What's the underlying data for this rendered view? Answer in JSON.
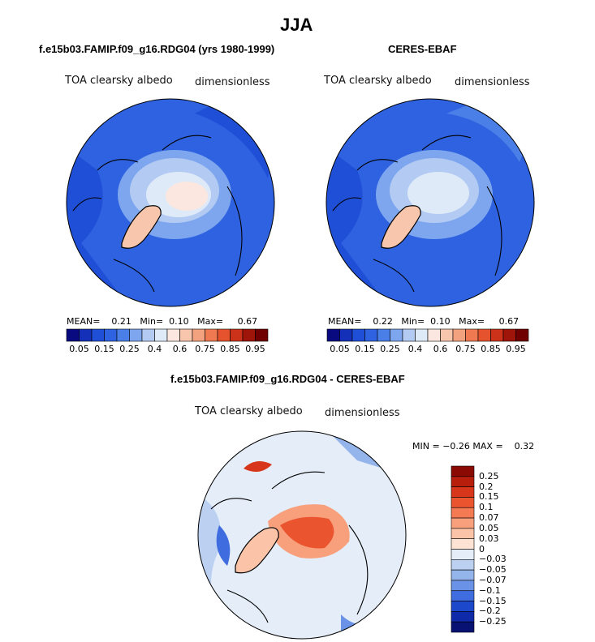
{
  "chart_data": [
    {
      "type": "heatmap",
      "projection": "north-polar-stereographic",
      "panel_title": "f.e15b03.FAMIP.f09_g16.RDG04 (yrs 1980-1999)",
      "variable": "TOA clearsky albedo",
      "units": "dimensionless",
      "stats": {
        "mean_label": "MEAN=",
        "mean": "0.21",
        "min_label": "Min=",
        "min": "0.10",
        "max_label": "Max=",
        "max": "0.67"
      },
      "colorbar_levels": [
        "0.05",
        "0.1",
        "0.15",
        "0.2",
        "0.25",
        "0.3",
        "0.4",
        "0.5",
        "0.6",
        "0.7",
        "0.75",
        "0.8",
        "0.85",
        "0.9",
        "0.95"
      ],
      "colorbar_tick_labels": [
        "0.05",
        "0.15",
        "0.25",
        "0.4",
        "0.6",
        "0.75",
        "0.85",
        "0.95"
      ],
      "colorbar_colors": [
        "#0a0a80",
        "#1530b8",
        "#1f4fd6",
        "#2e62e0",
        "#4a7fe8",
        "#7ea6ee",
        "#b3cbf3",
        "#dfeaf9",
        "#fbe7df",
        "#f7c6ad",
        "#f3a27f",
        "#ef7a52",
        "#e5532e",
        "#cc3219",
        "#a01509",
        "#700000"
      ]
    },
    {
      "type": "heatmap",
      "projection": "north-polar-stereographic",
      "panel_title": "CERES-EBAF",
      "variable": "TOA clearsky albedo",
      "units": "dimensionless",
      "stats": {
        "mean_label": "MEAN=",
        "mean": "0.22",
        "min_label": "Min=",
        "min": "0.10",
        "max_label": "Max=",
        "max": "0.67"
      },
      "colorbar_tick_labels": [
        "0.05",
        "0.15",
        "0.25",
        "0.4",
        "0.6",
        "0.75",
        "0.85",
        "0.95"
      ]
    },
    {
      "type": "heatmap",
      "projection": "north-polar-stereographic",
      "panel_title": "f.e15b03.FAMIP.f09_g16.RDG04 - CERES-EBAF",
      "variable": "TOA clearsky albedo",
      "units": "dimensionless",
      "stats": {
        "min_label": "MIN =",
        "min": "−0.26",
        "max_label": "MAX =",
        "max": "0.32"
      },
      "colorbar_levels_top_to_bottom": [
        "0.25",
        "0.2",
        "0.15",
        "0.1",
        "0.07",
        "0.05",
        "0.03",
        "0",
        "−0.03",
        "−0.05",
        "−0.07",
        "−0.1",
        "−0.15",
        "−0.2",
        "−0.25"
      ],
      "colorbar_colors_top_to_bottom": [
        "#8b0a04",
        "#b81e0c",
        "#d8361a",
        "#ea5530",
        "#f37a52",
        "#f8a07c",
        "#fbc4a8",
        "#fde3d3",
        "#e4edf8",
        "#bcd1f1",
        "#94b4ec",
        "#6a92e6",
        "#3f6de0",
        "#1c48cc",
        "#0e2aa8",
        "#071273"
      ]
    }
  ],
  "figure": {
    "season_title": "JJA"
  }
}
